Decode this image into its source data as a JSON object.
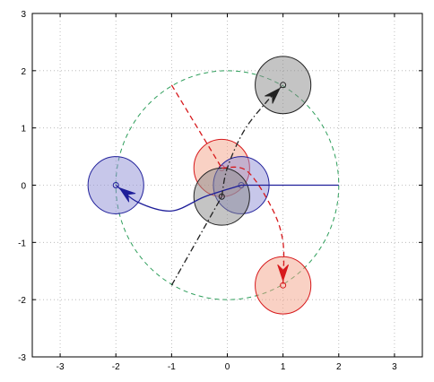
{
  "chart_data": {
    "type": "line",
    "xlim": [
      -3.5,
      3.5
    ],
    "ylim": [
      -3,
      3
    ],
    "x_ticks": [
      -3,
      -2,
      -1,
      0,
      1,
      2,
      3
    ],
    "y_ticks": [
      -3,
      -2,
      -1,
      0,
      1,
      2,
      3
    ],
    "x_tick_labels": [
      "-3",
      "-2",
      "-1",
      "0",
      "1",
      "2",
      "3"
    ],
    "y_tick_labels": [
      "-3",
      "-2",
      "-1",
      "0",
      "1",
      "2",
      "3"
    ],
    "grid": true,
    "reference_circle": {
      "center": [
        0,
        0
      ],
      "radius": 2,
      "color": "#2e9e5b",
      "style": "dashed"
    },
    "discs": [
      {
        "group": "red",
        "center": [
          -0.1,
          0.3
        ],
        "radius": 0.5,
        "color": "#f4a38a",
        "edge": "#d7191c"
      },
      {
        "group": "blue",
        "center": [
          0.25,
          0.0
        ],
        "radius": 0.5,
        "color": "#8f8fd6",
        "edge": "#1f1f9a"
      },
      {
        "group": "black",
        "center": [
          -0.1,
          -0.2
        ],
        "radius": 0.5,
        "color": "#8a8a8a",
        "edge": "#222222"
      },
      {
        "group": "blue",
        "center": [
          -2.0,
          0.0
        ],
        "radius": 0.5,
        "color": "#8f8fd6",
        "edge": "#1f1f9a"
      },
      {
        "group": "black",
        "center": [
          1.0,
          1.75
        ],
        "radius": 0.5,
        "color": "#8a8a8a",
        "edge": "#222222"
      },
      {
        "group": "red",
        "center": [
          1.0,
          -1.75
        ],
        "radius": 0.5,
        "color": "#f4a38a",
        "edge": "#d7191c"
      }
    ],
    "series": [
      {
        "group": "blue",
        "color": "#1f1f9a",
        "style": "solid",
        "guide": [
          [
            2.0,
            0.0
          ],
          [
            0.25,
            0.0
          ]
        ],
        "path": [
          [
            0.25,
            0.0
          ],
          [
            -0.4,
            -0.2
          ],
          [
            -1.0,
            -0.45
          ],
          [
            -1.6,
            -0.3
          ],
          [
            -2.0,
            0.0
          ]
        ]
      },
      {
        "group": "red",
        "color": "#d7191c",
        "style": "dashed",
        "guide": [
          [
            -1.0,
            1.75
          ],
          [
            -0.1,
            0.3
          ]
        ],
        "path": [
          [
            -0.1,
            0.3
          ],
          [
            0.35,
            0.25
          ],
          [
            0.8,
            -0.4
          ],
          [
            1.0,
            -1.0
          ],
          [
            1.0,
            -1.75
          ]
        ]
      },
      {
        "group": "black",
        "color": "#222222",
        "style": "dashdot",
        "guide": [
          [
            -1.0,
            -1.75
          ],
          [
            -0.1,
            -0.2
          ]
        ],
        "path": [
          [
            -0.1,
            -0.2
          ],
          [
            0.0,
            0.3
          ],
          [
            0.3,
            0.95
          ],
          [
            0.7,
            1.45
          ],
          [
            1.0,
            1.75
          ]
        ]
      }
    ],
    "colors": {
      "grid": "#b0b0b0",
      "axes": "#000000",
      "background": "#ffffff"
    }
  }
}
